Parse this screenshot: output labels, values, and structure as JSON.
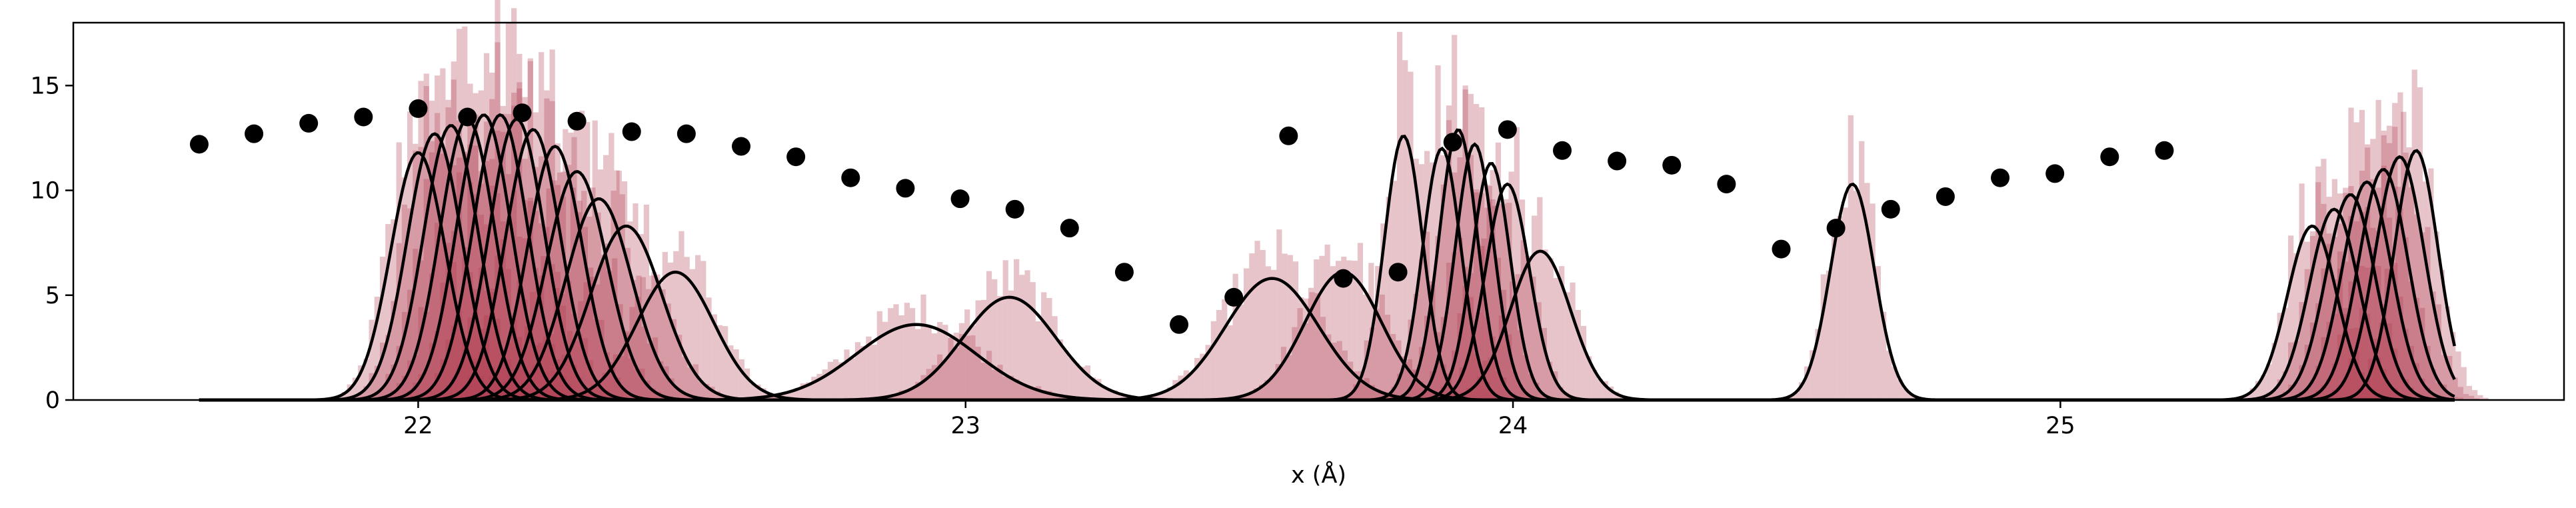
{
  "chart_data": {
    "type": "histogram+line+scatter",
    "xlabel": "x (Å)",
    "ylabel": "",
    "title": "",
    "xlim": [
      21.37,
      25.92
    ],
    "ylim": [
      0,
      18
    ],
    "xticks": [
      22,
      23,
      24,
      25
    ],
    "yticks": [
      0,
      5,
      10,
      15
    ],
    "grid": false,
    "legend": "none",
    "colors": {
      "histogram_fill": "#b03a4e",
      "curve_line": "#000000",
      "points": "#000000"
    },
    "gaussian_curves": {
      "x_range": [
        21.6,
        25.72
      ],
      "components": [
        {
          "center": 22.0,
          "amplitude": 11.8,
          "sigma": 0.05
        },
        {
          "center": 22.03,
          "amplitude": 12.7,
          "sigma": 0.05
        },
        {
          "center": 22.06,
          "amplitude": 13.1,
          "sigma": 0.05
        },
        {
          "center": 22.09,
          "amplitude": 13.4,
          "sigma": 0.05
        },
        {
          "center": 22.12,
          "amplitude": 13.6,
          "sigma": 0.05
        },
        {
          "center": 22.15,
          "amplitude": 13.6,
          "sigma": 0.05
        },
        {
          "center": 22.18,
          "amplitude": 13.4,
          "sigma": 0.05
        },
        {
          "center": 22.21,
          "amplitude": 12.9,
          "sigma": 0.05
        },
        {
          "center": 22.25,
          "amplitude": 12.1,
          "sigma": 0.05
        },
        {
          "center": 22.29,
          "amplitude": 10.9,
          "sigma": 0.055
        },
        {
          "center": 22.33,
          "amplitude": 9.6,
          "sigma": 0.06
        },
        {
          "center": 22.38,
          "amplitude": 8.3,
          "sigma": 0.065
        },
        {
          "center": 22.47,
          "amplitude": 6.1,
          "sigma": 0.07
        },
        {
          "center": 22.91,
          "amplitude": 3.6,
          "sigma": 0.11
        },
        {
          "center": 23.08,
          "amplitude": 4.9,
          "sigma": 0.085
        },
        {
          "center": 23.56,
          "amplitude": 5.8,
          "sigma": 0.085
        },
        {
          "center": 23.69,
          "amplitude": 6.1,
          "sigma": 0.07
        },
        {
          "center": 23.8,
          "amplitude": 12.6,
          "sigma": 0.035
        },
        {
          "center": 23.87,
          "amplitude": 12.0,
          "sigma": 0.035
        },
        {
          "center": 23.9,
          "amplitude": 12.9,
          "sigma": 0.035
        },
        {
          "center": 23.93,
          "amplitude": 12.2,
          "sigma": 0.035
        },
        {
          "center": 23.96,
          "amplitude": 11.3,
          "sigma": 0.035
        },
        {
          "center": 23.99,
          "amplitude": 10.3,
          "sigma": 0.04
        },
        {
          "center": 24.05,
          "amplitude": 7.1,
          "sigma": 0.055
        },
        {
          "center": 24.62,
          "amplitude": 10.3,
          "sigma": 0.04
        },
        {
          "center": 25.46,
          "amplitude": 8.3,
          "sigma": 0.045
        },
        {
          "center": 25.5,
          "amplitude": 9.1,
          "sigma": 0.045
        },
        {
          "center": 25.53,
          "amplitude": 9.8,
          "sigma": 0.045
        },
        {
          "center": 25.56,
          "amplitude": 10.4,
          "sigma": 0.045
        },
        {
          "center": 25.59,
          "amplitude": 11.0,
          "sigma": 0.045
        },
        {
          "center": 25.62,
          "amplitude": 11.6,
          "sigma": 0.045
        },
        {
          "center": 25.65,
          "amplitude": 11.9,
          "sigma": 0.04
        }
      ]
    },
    "histogram": {
      "bin_width": 0.01,
      "overlap_factor": 1.15
    },
    "scatter": {
      "x": [
        21.6,
        21.7,
        21.8,
        21.9,
        22.0,
        22.09,
        22.19,
        22.29,
        22.39,
        22.49,
        22.59,
        22.69,
        22.79,
        22.89,
        22.99,
        23.09,
        23.19,
        23.29,
        23.39,
        23.49,
        23.59,
        23.69,
        23.79,
        23.89,
        23.99,
        24.09,
        24.19,
        24.29,
        24.39,
        24.49,
        24.59,
        24.69,
        24.79,
        24.89,
        24.99,
        25.09,
        25.19
      ],
      "y": [
        12.2,
        12.7,
        13.2,
        13.5,
        13.9,
        13.5,
        13.7,
        13.3,
        12.8,
        12.7,
        12.1,
        11.6,
        10.6,
        10.1,
        9.6,
        9.1,
        8.2,
        6.1,
        3.6,
        4.9,
        12.6,
        5.8,
        6.1,
        12.3,
        12.9,
        11.9,
        11.4,
        11.2,
        10.3,
        7.2,
        8.2,
        9.1,
        9.7,
        10.6,
        10.8,
        11.6,
        11.9
      ]
    }
  }
}
